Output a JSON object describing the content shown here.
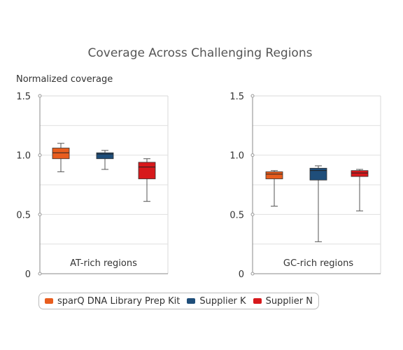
{
  "chart_data": [
    {
      "type": "boxplot",
      "title": "Coverage Across Challenging Regions",
      "ylabel": "Normalized coverage",
      "panel_label": "AT-rich regions",
      "ylim": [
        0,
        1.5
      ],
      "yticks": [
        "0",
        "0.5",
        "1.0",
        "1.5"
      ],
      "series": [
        {
          "name": "sparQ DNA Library Prep Kit",
          "min": 0.86,
          "q1": 0.97,
          "median": 1.02,
          "q3": 1.06,
          "max": 1.1
        },
        {
          "name": "Supplier K",
          "min": 0.88,
          "q1": 0.97,
          "median": 1.01,
          "q3": 1.02,
          "max": 1.04
        },
        {
          "name": "Supplier N",
          "min": 0.61,
          "q1": 0.8,
          "median": 0.9,
          "q3": 0.94,
          "max": 0.97
        }
      ]
    },
    {
      "type": "boxplot",
      "panel_label": "GC-rich regions",
      "ylim": [
        0,
        1.5
      ],
      "yticks": [
        "0",
        "0.5",
        "1.0",
        "1.5"
      ],
      "series": [
        {
          "name": "sparQ DNA Library Prep Kit",
          "min": 0.57,
          "q1": 0.8,
          "median": 0.84,
          "q3": 0.86,
          "max": 0.87
        },
        {
          "name": "Supplier K",
          "min": 0.27,
          "q1": 0.79,
          "median": 0.87,
          "q3": 0.89,
          "max": 0.91
        },
        {
          "name": "Supplier N",
          "min": 0.53,
          "q1": 0.82,
          "median": 0.85,
          "q3": 0.87,
          "max": 0.88
        }
      ]
    }
  ],
  "legend": [
    {
      "label": "sparQ DNA Library Prep Kit",
      "color": "#e85d1e"
    },
    {
      "label": "Supplier K",
      "color": "#1f4e7a"
    },
    {
      "label": "Supplier N",
      "color": "#d7191c"
    }
  ]
}
